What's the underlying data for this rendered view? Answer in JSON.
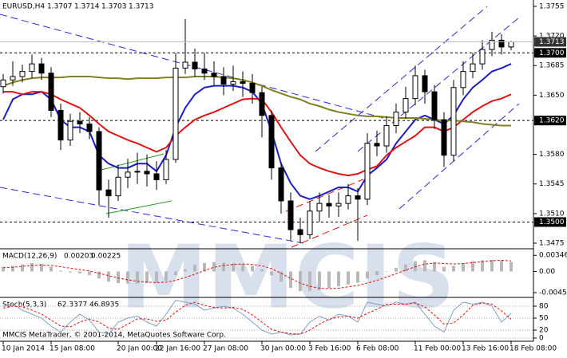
{
  "chart_data": {
    "type": "candlestick",
    "symbol": "EURUSD,H4",
    "watermark": "MMCIS",
    "copyright": "MMCIS MetaTrader, © 2001-2014, MetaQuotes Software Corp.",
    "categories": [
      "10 Jan 2014",
      null,
      null,
      null,
      null,
      "15 Jan 08:00",
      null,
      null,
      null,
      null,
      null,
      null,
      "20 Jan 00:00",
      null,
      null,
      null,
      "22 Jan 16:00",
      null,
      null,
      null,
      null,
      "27 Jan 08:00",
      null,
      null,
      null,
      null,
      null,
      "30 Jan 00:00",
      null,
      null,
      null,
      null,
      "3 Feb 16:00",
      null,
      null,
      null,
      null,
      "6 Feb 08:00",
      null,
      null,
      null,
      null,
      null,
      "11 Feb 00:00",
      null,
      null,
      null,
      null,
      "13 Feb 16:00",
      null,
      null,
      null,
      null,
      "18 Feb 08:00"
    ],
    "ohlc": [
      [
        1.366,
        1.3675,
        1.3652,
        1.3668
      ],
      [
        1.3668,
        1.369,
        1.3661,
        1.3672
      ],
      [
        1.3672,
        1.3686,
        1.3665,
        1.3678
      ],
      [
        1.3678,
        1.3698,
        1.367,
        1.3687
      ],
      [
        1.3687,
        1.3694,
        1.3668,
        1.3676
      ],
      [
        1.3676,
        1.3683,
        1.3624,
        1.3632
      ],
      [
        1.3632,
        1.364,
        1.3585,
        1.3597
      ],
      [
        1.3597,
        1.3628,
        1.359,
        1.3619
      ],
      [
        1.3619,
        1.363,
        1.3605,
        1.3616
      ],
      [
        1.3616,
        1.3624,
        1.3598,
        1.3607
      ],
      [
        1.3607,
        1.3612,
        1.352,
        1.3538
      ],
      [
        1.3538,
        1.355,
        1.3505,
        1.3531
      ],
      [
        1.3531,
        1.3568,
        1.3525,
        1.3553
      ],
      [
        1.3553,
        1.3575,
        1.354,
        1.3559
      ],
      [
        1.3559,
        1.3582,
        1.3545,
        1.356
      ],
      [
        1.356,
        1.358,
        1.3542,
        1.3557
      ],
      [
        1.3557,
        1.3572,
        1.3538,
        1.355
      ],
      [
        1.355,
        1.3585,
        1.3545,
        1.3574
      ],
      [
        1.3574,
        1.37,
        1.357,
        1.3682
      ],
      [
        1.3682,
        1.374,
        1.3675,
        1.3689
      ],
      [
        1.3689,
        1.3705,
        1.3672,
        1.3681
      ],
      [
        1.3681,
        1.37,
        1.3668,
        1.3676
      ],
      [
        1.3676,
        1.369,
        1.3662,
        1.3672
      ],
      [
        1.3672,
        1.3683,
        1.365,
        1.3663
      ],
      [
        1.3663,
        1.3685,
        1.3655,
        1.3666
      ],
      [
        1.3666,
        1.3678,
        1.3648,
        1.3664
      ],
      [
        1.3664,
        1.3675,
        1.364,
        1.3653
      ],
      [
        1.3653,
        1.366,
        1.36,
        1.3626
      ],
      [
        1.3626,
        1.3632,
        1.355,
        1.3564
      ],
      [
        1.3564,
        1.357,
        1.351,
        1.3525
      ],
      [
        1.3525,
        1.3535,
        1.3478,
        1.3491
      ],
      [
        1.3491,
        1.3505,
        1.3475,
        1.3485
      ],
      [
        1.3485,
        1.3525,
        1.348,
        1.3513
      ],
      [
        1.3513,
        1.3535,
        1.35,
        1.3522
      ],
      [
        1.3522,
        1.3532,
        1.3505,
        1.3519
      ],
      [
        1.3519,
        1.3535,
        1.3506,
        1.3522
      ],
      [
        1.3522,
        1.3545,
        1.3515,
        1.3531
      ],
      [
        1.3531,
        1.354,
        1.3478,
        1.3527
      ],
      [
        1.3527,
        1.3605,
        1.352,
        1.3593
      ],
      [
        1.3593,
        1.3608,
        1.3578,
        1.359
      ],
      [
        1.359,
        1.3625,
        1.3582,
        1.3614
      ],
      [
        1.3614,
        1.364,
        1.3605,
        1.363
      ],
      [
        1.363,
        1.366,
        1.3622,
        1.3646
      ],
      [
        1.3646,
        1.3685,
        1.3638,
        1.3673
      ],
      [
        1.3673,
        1.368,
        1.364,
        1.3654
      ],
      [
        1.3654,
        1.3662,
        1.361,
        1.3621
      ],
      [
        1.3621,
        1.363,
        1.3565,
        1.3579
      ],
      [
        1.3579,
        1.3668,
        1.3572,
        1.3659
      ],
      [
        1.3659,
        1.369,
        1.365,
        1.3678
      ],
      [
        1.3678,
        1.37,
        1.367,
        1.3687
      ],
      [
        1.3687,
        1.3715,
        1.368,
        1.3704
      ],
      [
        1.3704,
        1.3725,
        1.3696,
        1.3715
      ],
      [
        1.3715,
        1.3722,
        1.3698,
        1.3707
      ],
      [
        1.3707,
        1.3714,
        1.3703,
        1.3713
      ]
    ],
    "series": [
      {
        "color": "#1c1cc8",
        "values": [
          1.3621,
          1.3645,
          1.3651,
          1.3651,
          1.3654,
          1.3645,
          1.3621,
          1.3612,
          1.3612,
          1.3607,
          1.3579,
          1.3569,
          1.3564,
          1.3564,
          1.3569,
          1.3569,
          1.356,
          1.3579,
          1.3612,
          1.3635,
          1.3651,
          1.3659,
          1.3661,
          1.3661,
          1.3661,
          1.3659,
          1.3654,
          1.364,
          1.3607,
          1.3569,
          1.3546,
          1.3531,
          1.3527,
          1.3531,
          1.3536,
          1.3541,
          1.3541,
          1.3536,
          1.3555,
          1.3564,
          1.3574,
          1.3593,
          1.3607,
          1.3621,
          1.3626,
          1.3621,
          1.3616,
          1.3626,
          1.3645,
          1.3659,
          1.3668,
          1.3678,
          1.3682,
          1.3687
        ]
      },
      {
        "color": "#e01414",
        "values": [
          1.3654,
          1.3654,
          1.3651,
          1.3654,
          1.3654,
          1.3651,
          1.3645,
          1.364,
          1.3635,
          1.3626,
          1.3616,
          1.3607,
          1.3602,
          1.3597,
          1.3593,
          1.3588,
          1.3583,
          1.3588,
          1.3602,
          1.3612,
          1.3621,
          1.3626,
          1.363,
          1.3635,
          1.364,
          1.3645,
          1.3646,
          1.3645,
          1.363,
          1.3612,
          1.3595,
          1.3579,
          1.3569,
          1.3564,
          1.356,
          1.3557,
          1.3555,
          1.3557,
          1.3562,
          1.3566,
          1.3579,
          1.3588,
          1.3595,
          1.3602,
          1.3612,
          1.3612,
          1.3607,
          1.3612,
          1.3621,
          1.363,
          1.3637,
          1.3643,
          1.3646,
          1.3651
        ]
      },
      {
        "color": "#808020",
        "values": [
          1.3661,
          1.3665,
          1.3668,
          1.367,
          1.3671,
          1.3671,
          1.3671,
          1.3672,
          1.3672,
          1.3672,
          1.3671,
          1.367,
          1.367,
          1.3669,
          1.367,
          1.367,
          1.367,
          1.3671,
          1.3671,
          1.3671,
          1.3672,
          1.3672,
          1.3672,
          1.3671,
          1.367,
          1.3668,
          1.3665,
          1.3661,
          1.3656,
          1.3652,
          1.3648,
          1.3645,
          1.364,
          1.3637,
          1.3633,
          1.363,
          1.3628,
          1.3626,
          1.3625,
          1.3625,
          1.3624,
          1.3623,
          1.3623,
          1.3623,
          1.3622,
          1.3621,
          1.362,
          1.362,
          1.3619,
          1.3618,
          1.3616,
          1.3615,
          1.3614,
          1.3614
        ]
      }
    ],
    "ylim": [
      1.34684,
      1.37625
    ],
    "yticks": [
      1.3755,
      {
        "value": 1.372,
        "label": "1.3720"
      },
      1.3685,
      {
        "value": 1.365,
        "label": "1.3650"
      },
      {
        "value": 1.358,
        "label": "1.3580"
      },
      1.3545,
      {
        "value": 1.351,
        "label": "1.3510"
      },
      1.3475
    ],
    "levels": [
      {
        "value": 1.37,
        "label": "1.3700"
      },
      {
        "value": 1.362,
        "label": "1.3620"
      },
      {
        "value": 1.35,
        "label": "1.3500"
      }
    ],
    "macd": {
      "title": "MACD(12,26,9)",
      "histogram_color": "#b8b8b8",
      "signal_color": "#e01414",
      "histogram": [
        0.001,
        0.0012,
        0.0015,
        0.0018,
        0.0016,
        0.001,
        0.0002,
        -0.0002,
        -0.0004,
        -0.0008,
        -0.0015,
        -0.0022,
        -0.0025,
        -0.0026,
        -0.0026,
        -0.0025,
        -0.0024,
        -0.002,
        -0.0008,
        0.0005,
        0.0014,
        0.0018,
        0.002,
        0.0019,
        0.0018,
        0.0016,
        0.0012,
        0.0005,
        -0.0008,
        -0.0022,
        -0.0035,
        -0.0042,
        -0.0042,
        -0.004,
        -0.0036,
        -0.0032,
        -0.0028,
        -0.0024,
        -0.0015,
        -0.0008,
        0.0,
        0.0008,
        0.0015,
        0.0022,
        0.0024,
        0.002,
        0.001,
        0.0012,
        0.0018,
        0.0022,
        0.0024,
        0.0025,
        0.0024,
        0.00203
      ],
      "signal": [
        0.0008,
        0.0009,
        0.0011,
        0.0013,
        0.0014,
        0.0013,
        0.001,
        0.0007,
        0.0004,
        0.0001,
        -0.0004,
        -0.0009,
        -0.0014,
        -0.0018,
        -0.0021,
        -0.0023,
        -0.0024,
        -0.0023,
        -0.0019,
        -0.0013,
        -0.0006,
        0.0002,
        0.0009,
        0.0013,
        0.0015,
        0.0016,
        0.0015,
        0.0012,
        0.0006,
        -0.0004,
        -0.0015,
        -0.0025,
        -0.0032,
        -0.0036,
        -0.0037,
        -0.0036,
        -0.0033,
        -0.003,
        -0.0025,
        -0.0019,
        -0.0012,
        -0.0005,
        0.0003,
        0.001,
        0.0016,
        0.0018,
        0.0017,
        0.0016,
        0.0017,
        0.0019,
        0.0021,
        0.0023,
        0.0024,
        0.00225
      ],
      "ylim": [
        -0.0054,
        0.0047
      ],
      "yticks": [
        0.00346,
        {
          "value": 0,
          "label": "0.00"
        },
        -0.00455
      ]
    },
    "stoch": {
      "title": "Stoch(5,3,3)",
      "main_color": "#7f9fc4",
      "signal_color": "#e01414",
      "main": [
        80,
        85,
        70,
        60,
        50,
        30,
        15,
        40,
        60,
        45,
        15,
        10,
        40,
        50,
        55,
        40,
        30,
        60,
        95,
        90,
        85,
        70,
        75,
        80,
        75,
        60,
        40,
        20,
        10,
        15,
        8,
        10,
        40,
        55,
        45,
        60,
        55,
        40,
        90,
        85,
        80,
        90,
        85,
        90,
        60,
        30,
        15,
        70,
        90,
        85,
        90,
        80,
        40,
        62.3377
      ],
      "signal": [
        75,
        80,
        78,
        70,
        60,
        45,
        30,
        28,
        40,
        48,
        40,
        25,
        22,
        35,
        48,
        48,
        42,
        45,
        65,
        82,
        90,
        82,
        77,
        75,
        77,
        72,
        58,
        40,
        22,
        15,
        11,
        10,
        20,
        35,
        47,
        53,
        55,
        50,
        62,
        72,
        85,
        85,
        85,
        88,
        78,
        58,
        35,
        38,
        58,
        82,
        88,
        85,
        68,
        46.8935
      ],
      "ylim": [
        0,
        100
      ],
      "yticks": [
        80,
        50,
        20,
        0
      ]
    }
  }
}
